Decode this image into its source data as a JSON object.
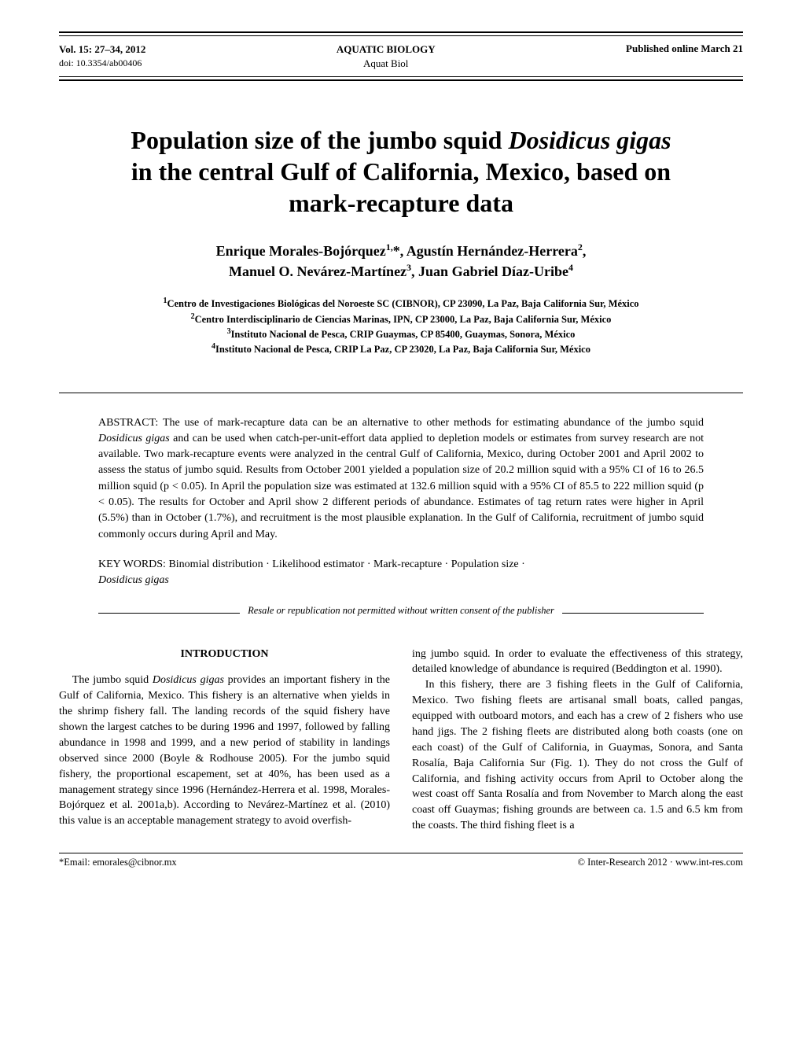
{
  "header": {
    "volume_line": "Vol. 15: 27–34, 2012",
    "doi_line": "doi: 10.3354/ab00406",
    "journal_full": "AQUATIC BIOLOGY",
    "journal_short": "Aquat Biol",
    "published": "Published online March 21"
  },
  "title": {
    "line1_pre": "Population size of the jumbo squid ",
    "line1_species": "Dosidicus gigas",
    "line2": "in the central Gulf of California, Mexico, based on",
    "line3": "mark-recapture data"
  },
  "authors": {
    "a1_name": "Enrique Morales-Bojórquez",
    "a1_sup": "1,",
    "a1_star": "*",
    "a2_name": ", Agustín Hernández-Herrera",
    "a2_sup": "2",
    "a2_comma": ",",
    "a3_name": "Manuel O. Nevárez-Martínez",
    "a3_sup": "3",
    "a4_name": ", Juan Gabriel Díaz-Uribe",
    "a4_sup": "4"
  },
  "affiliations": {
    "l1_sup": "1",
    "l1": "Centro de Investigaciones Biológicas del Noroeste SC (CIBNOR), CP 23090, La Paz, Baja California Sur, México",
    "l2_sup": "2",
    "l2": "Centro Interdisciplinario de Ciencias Marinas, IPN, CP 23000, La Paz, Baja California Sur, México",
    "l3_sup": "3",
    "l3": "Instituto Nacional de Pesca, CRIP Guaymas, CP 85400, Guaymas, Sonora, México",
    "l4_sup": "4",
    "l4": "Instituto Nacional de Pesca, CRIP La Paz, CP 23020, La Paz, Baja California Sur, México"
  },
  "abstract": {
    "label": "ABSTRACT: ",
    "text_pre": "The use of mark-recapture data can be an alternative to other methods for estimating abundance of the jumbo squid ",
    "species": "Dosidicus gigas",
    "text_post": " and can be used when catch-per-unit-effort data applied to depletion models or estimates from survey research are not available. Two mark-recapture events were analyzed in the central Gulf of California, Mexico, during October 2001 and April 2002 to assess the status of jumbo squid. Results from October 2001 yielded a population size of 20.2 million squid with a 95% CI of 16 to 26.5 million squid (p < 0.05). In April the population size was estimated at 132.6 million squid with a 95% CI of 85.5 to 222 million squid (p < 0.05). The results for October and April show 2 different periods of abundance. Estimates of tag return rates were higher in April (5.5%) than in October (1.7%), and recruitment is the most plausible explanation. In the Gulf of California, recruitment of jumbo squid commonly occurs during April and May."
  },
  "keywords": {
    "label": "KEY WORDS:  ",
    "text": "Binomial distribution · Likelihood estimator · Mark-recapture · Population size · ",
    "species": "Dosidicus gigas"
  },
  "resale": "Resale or republication not permitted without written consent of the publisher",
  "body": {
    "intro_heading": "INTRODUCTION",
    "left": {
      "p1_pre": "The jumbo squid ",
      "p1_species": "Dosidicus gigas",
      "p1_post": " provides an important fishery in the Gulf of California, Mexico. This fishery is an alternative when yields in the shrimp fishery fall. The landing records of the squid fishery have shown the largest catches to be during 1996 and 1997, followed by falling abundance in 1998 and 1999, and a new period of stability in landings observed since 2000 (Boyle & Rodhouse 2005). For the jumbo squid fishery, the proportional escapement, set at 40%, has been used as a management strategy since 1996 (Hernández-Herrera et al. 1998, Morales-Bojórquez et al. 2001a,b). According to Nevárez-Martínez et al. (2010) this value is an acceptable management strategy to avoid overfish-"
    },
    "right": {
      "p1": "ing jumbo squid. In order to evaluate the effectiveness of this strategy, detailed knowledge of abundance is required (Beddington et al. 1990).",
      "p2": "In this fishery, there are 3 fishing fleets in the Gulf of California, Mexico. Two fishing fleets are artisanal small boats, called pangas, equipped with outboard motors, and each has a crew of 2 fishers who use hand jigs. The 2 fishing fleets are distributed along both coasts (one on each coast) of the Gulf of California, in Guaymas, Sonora, and Santa Rosalía, Baja California Sur (Fig. 1). They do not cross the Gulf of California, and fishing activity occurs from April to October along the west coast off Santa Rosalía and from November to March along the east coast off Guaymas; fishing grounds are between ca. 1.5 and 6.5 km from the coasts. The third fishing fleet is a"
    }
  },
  "footer": {
    "email": "*Email: emorales@cibnor.mx",
    "copyright": "© Inter-Research 2012 · www.int-res.com"
  }
}
